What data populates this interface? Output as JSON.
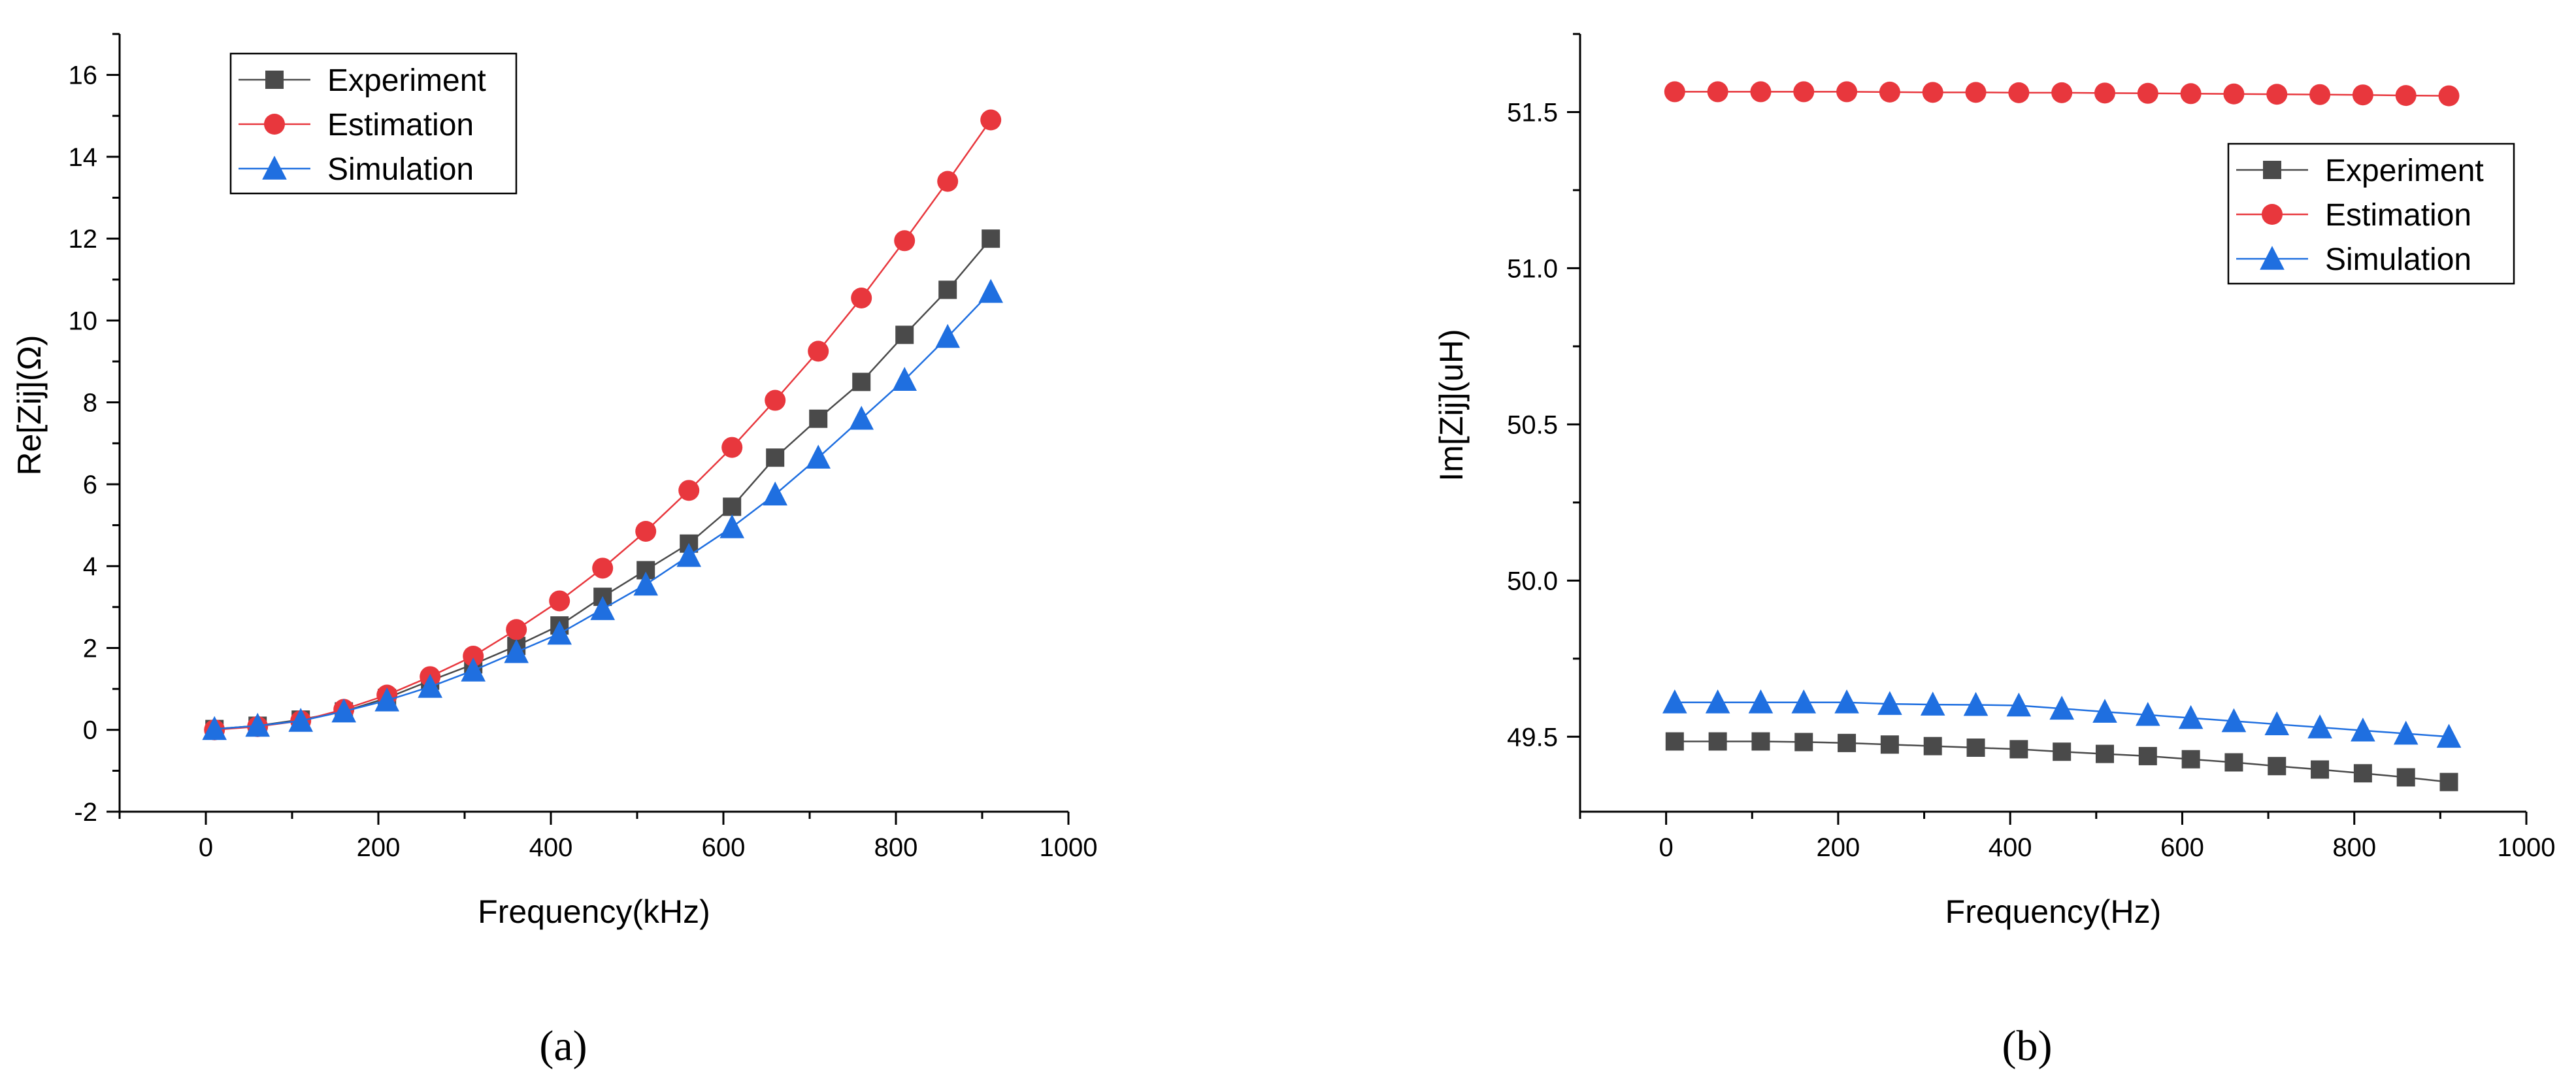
{
  "chart_data": [
    {
      "type": "line",
      "panel_label": "(a)",
      "xlabel": "Frequency(kHz)",
      "ylabel": "Re[Zij](Ω)",
      "xlim": [
        -100,
        1000
      ],
      "ylim": [
        -2,
        17
      ],
      "xticks": [
        0,
        200,
        400,
        600,
        800,
        1000
      ],
      "xtick_labels": [
        "0",
        "200",
        "400",
        "600",
        "800",
        "1000"
      ],
      "yticks": [
        -2,
        0,
        2,
        4,
        6,
        8,
        10,
        12,
        14,
        16
      ],
      "ytick_labels": [
        "-2",
        "0",
        "2",
        "4",
        "6",
        "8",
        "10",
        "12",
        "14",
        "16"
      ],
      "legend_position": "top-left",
      "x": [
        10,
        60,
        110,
        160,
        210,
        260,
        310,
        360,
        410,
        460,
        510,
        560,
        610,
        660,
        710,
        760,
        810,
        860,
        910
      ],
      "series": [
        {
          "name": "Experiment",
          "color": "#4a4a4a",
          "marker": "square",
          "values": [
            0.02,
            0.1,
            0.25,
            0.45,
            0.78,
            1.2,
            1.6,
            2.05,
            2.55,
            3.25,
            3.9,
            4.55,
            5.45,
            6.65,
            7.6,
            8.5,
            9.65,
            10.75,
            12.0
          ]
        },
        {
          "name": "Estimation",
          "color": "#e8373d",
          "marker": "circle",
          "values": [
            0.0,
            0.08,
            0.22,
            0.5,
            0.85,
            1.3,
            1.8,
            2.45,
            3.15,
            3.95,
            4.85,
            5.85,
            6.9,
            8.05,
            9.25,
            10.55,
            11.95,
            13.4,
            14.9
          ]
        },
        {
          "name": "Simulation",
          "color": "#1f6fe0",
          "marker": "triangle",
          "values": [
            0.02,
            0.1,
            0.22,
            0.45,
            0.72,
            1.05,
            1.45,
            1.9,
            2.35,
            2.95,
            3.55,
            4.25,
            4.95,
            5.75,
            6.65,
            7.6,
            8.55,
            9.6,
            10.7
          ]
        }
      ]
    },
    {
      "type": "line",
      "panel_label": "(b)",
      "xlabel": "Frequency(Hz)",
      "ylabel": "Im[Zij](uH)",
      "xlim": [
        -100,
        1000
      ],
      "ylim": [
        49.26,
        51.75
      ],
      "xticks": [
        0,
        200,
        400,
        600,
        800,
        1000
      ],
      "xtick_labels": [
        "0",
        "200",
        "400",
        "600",
        "800",
        "1000"
      ],
      "yticks": [
        49.5,
        50.0,
        50.5,
        51.0,
        51.5
      ],
      "ytick_labels": [
        "49.5",
        "50.0",
        "50.5",
        "51.0",
        "51.5"
      ],
      "legend_position": "top-right",
      "x": [
        10,
        60,
        110,
        160,
        210,
        260,
        310,
        360,
        410,
        460,
        510,
        560,
        610,
        660,
        710,
        760,
        810,
        860,
        910
      ],
      "series": [
        {
          "name": "Experiment",
          "color": "#4a4a4a",
          "marker": "square",
          "values": [
            49.485,
            49.485,
            49.485,
            49.483,
            49.48,
            49.475,
            49.47,
            49.465,
            49.46,
            49.452,
            49.445,
            49.438,
            49.428,
            49.418,
            49.406,
            49.395,
            49.383,
            49.37,
            49.355
          ]
        },
        {
          "name": "Estimation",
          "color": "#e8373d",
          "marker": "circle",
          "values": [
            51.565,
            51.565,
            51.565,
            51.565,
            51.565,
            51.564,
            51.563,
            51.563,
            51.562,
            51.562,
            51.561,
            51.56,
            51.559,
            51.558,
            51.557,
            51.556,
            51.555,
            51.553,
            51.552
          ]
        },
        {
          "name": "Simulation",
          "color": "#1f6fe0",
          "marker": "triangle",
          "values": [
            49.61,
            49.61,
            49.61,
            49.61,
            49.61,
            49.605,
            49.603,
            49.602,
            49.6,
            49.59,
            49.58,
            49.57,
            49.56,
            49.55,
            49.54,
            49.53,
            49.52,
            49.51,
            49.5
          ]
        }
      ]
    }
  ]
}
